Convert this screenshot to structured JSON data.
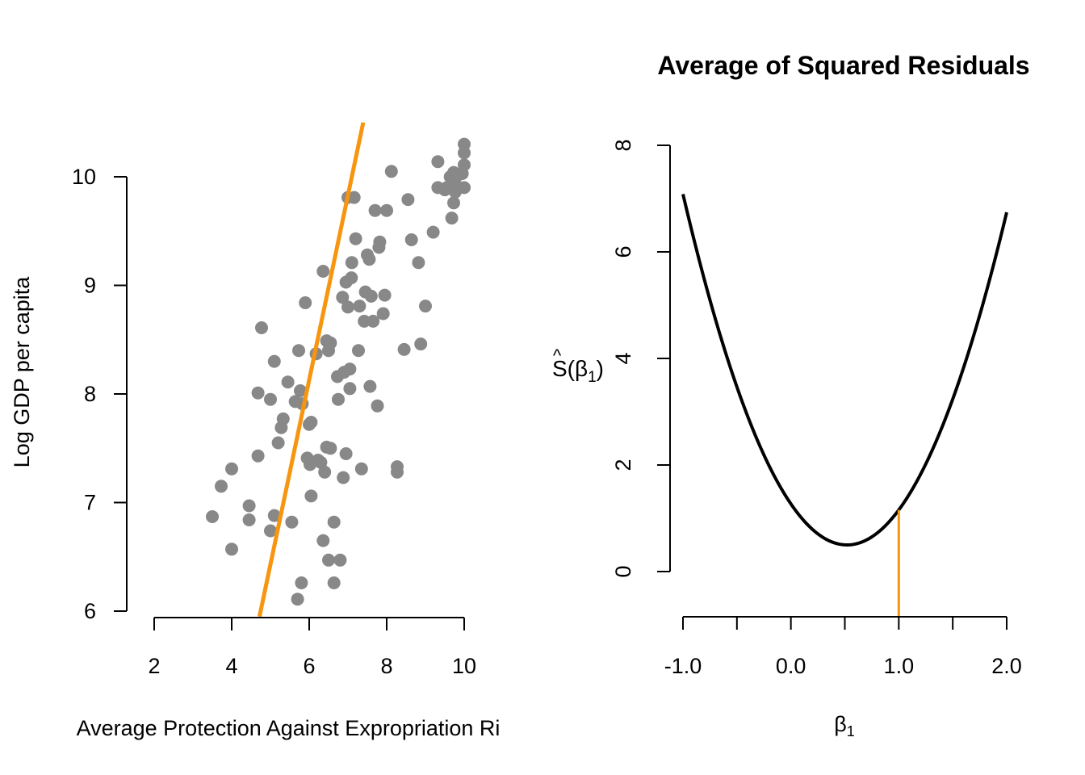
{
  "chart_data": [
    {
      "type": "scatter",
      "title": "",
      "xlabel": "Average Protection Against Expropriation Ri",
      "ylabel": "Log GDP per capita",
      "xlim": [
        2,
        10
      ],
      "ylim": [
        6,
        10
      ],
      "x_ticks": [
        "2",
        "4",
        "6",
        "8",
        "10"
      ],
      "y_ticks": [
        "6",
        "7",
        "8",
        "9",
        "10"
      ],
      "grid": false,
      "colors": {
        "points": "#888888",
        "fit_line": "#F7950F"
      },
      "fit_line": {
        "intercept": -2.07,
        "slope": 1.7
      },
      "points": [
        [
          3.5,
          6.87
        ],
        [
          3.73,
          7.15
        ],
        [
          4.0,
          7.31
        ],
        [
          4.0,
          6.57
        ],
        [
          4.45,
          6.97
        ],
        [
          4.45,
          6.84
        ],
        [
          4.68,
          8.01
        ],
        [
          4.68,
          7.43
        ],
        [
          4.77,
          8.61
        ],
        [
          5.0,
          7.95
        ],
        [
          5.0,
          6.74
        ],
        [
          5.1,
          8.3
        ],
        [
          5.1,
          6.88
        ],
        [
          5.2,
          7.55
        ],
        [
          5.28,
          7.69
        ],
        [
          5.33,
          7.77
        ],
        [
          5.45,
          8.11
        ],
        [
          5.55,
          6.82
        ],
        [
          5.64,
          7.93
        ],
        [
          5.7,
          6.11
        ],
        [
          5.73,
          8.4
        ],
        [
          5.77,
          8.03
        ],
        [
          5.8,
          6.26
        ],
        [
          5.82,
          7.91
        ],
        [
          5.9,
          8.84
        ],
        [
          5.95,
          7.41
        ],
        [
          6.0,
          7.72
        ],
        [
          6.02,
          7.35
        ],
        [
          6.05,
          7.06
        ],
        [
          6.05,
          7.74
        ],
        [
          6.18,
          8.37
        ],
        [
          6.23,
          7.39
        ],
        [
          6.3,
          7.37
        ],
        [
          6.36,
          6.65
        ],
        [
          6.36,
          9.13
        ],
        [
          6.4,
          7.28
        ],
        [
          6.45,
          8.49
        ],
        [
          6.45,
          7.51
        ],
        [
          6.5,
          6.47
        ],
        [
          6.5,
          8.4
        ],
        [
          6.55,
          7.5
        ],
        [
          6.55,
          8.47
        ],
        [
          6.64,
          6.82
        ],
        [
          6.64,
          6.26
        ],
        [
          6.73,
          8.16
        ],
        [
          6.75,
          7.95
        ],
        [
          6.8,
          6.47
        ],
        [
          6.86,
          8.89
        ],
        [
          6.88,
          7.23
        ],
        [
          6.9,
          8.2
        ],
        [
          6.95,
          7.45
        ],
        [
          6.95,
          9.03
        ],
        [
          7.0,
          8.8
        ],
        [
          7.0,
          9.81
        ],
        [
          7.05,
          8.23
        ],
        [
          7.05,
          8.05
        ],
        [
          7.09,
          9.07
        ],
        [
          7.1,
          9.21
        ],
        [
          7.16,
          9.81
        ],
        [
          7.2,
          9.43
        ],
        [
          7.27,
          8.4
        ],
        [
          7.3,
          8.81
        ],
        [
          7.35,
          7.31
        ],
        [
          7.42,
          8.67
        ],
        [
          7.45,
          8.94
        ],
        [
          7.5,
          9.28
        ],
        [
          7.55,
          9.24
        ],
        [
          7.57,
          8.07
        ],
        [
          7.6,
          8.9
        ],
        [
          7.65,
          8.67
        ],
        [
          7.7,
          9.69
        ],
        [
          7.76,
          7.89
        ],
        [
          7.8,
          9.35
        ],
        [
          7.82,
          9.4
        ],
        [
          7.91,
          8.74
        ],
        [
          7.95,
          8.91
        ],
        [
          8.0,
          9.69
        ],
        [
          8.12,
          10.05
        ],
        [
          8.27,
          7.28
        ],
        [
          8.27,
          7.33
        ],
        [
          8.45,
          8.41
        ],
        [
          8.55,
          9.79
        ],
        [
          8.64,
          9.42
        ],
        [
          8.82,
          9.21
        ],
        [
          8.88,
          8.46
        ],
        [
          9.0,
          8.81
        ],
        [
          9.2,
          9.49
        ],
        [
          9.32,
          10.14
        ],
        [
          9.32,
          9.9
        ],
        [
          9.5,
          9.88
        ],
        [
          9.55,
          9.9
        ],
        [
          9.64,
          10.0
        ],
        [
          9.68,
          9.62
        ],
        [
          9.68,
          9.93
        ],
        [
          9.73,
          10.04
        ],
        [
          9.73,
          9.76
        ],
        [
          9.77,
          9.86
        ],
        [
          9.82,
          10.01
        ],
        [
          9.86,
          9.9
        ],
        [
          9.95,
          10.03
        ],
        [
          10.0,
          10.3
        ],
        [
          10.0,
          10.22
        ],
        [
          10.0,
          10.11
        ],
        [
          10.0,
          9.9
        ]
      ]
    },
    {
      "type": "line",
      "title": "Average of Squared Residuals",
      "xlabel": "β1",
      "ylabel": "Ŝ(β1)",
      "xlim": [
        -1.0,
        2.0
      ],
      "ylim": [
        0,
        8
      ],
      "x_ticks": [
        "-1.0",
        "0.0",
        "1.0",
        "2.0"
      ],
      "y_ticks": [
        "0",
        "2",
        "4",
        "6",
        "8"
      ],
      "grid": false,
      "colors": {
        "curve": "#000000",
        "marker": "#F7950F"
      },
      "curve": {
        "form": "quadratic",
        "vertex_x": 0.52,
        "vertex_y": 0.5,
        "curvature": 2.85
      },
      "marker_x": 1.0
    }
  ]
}
